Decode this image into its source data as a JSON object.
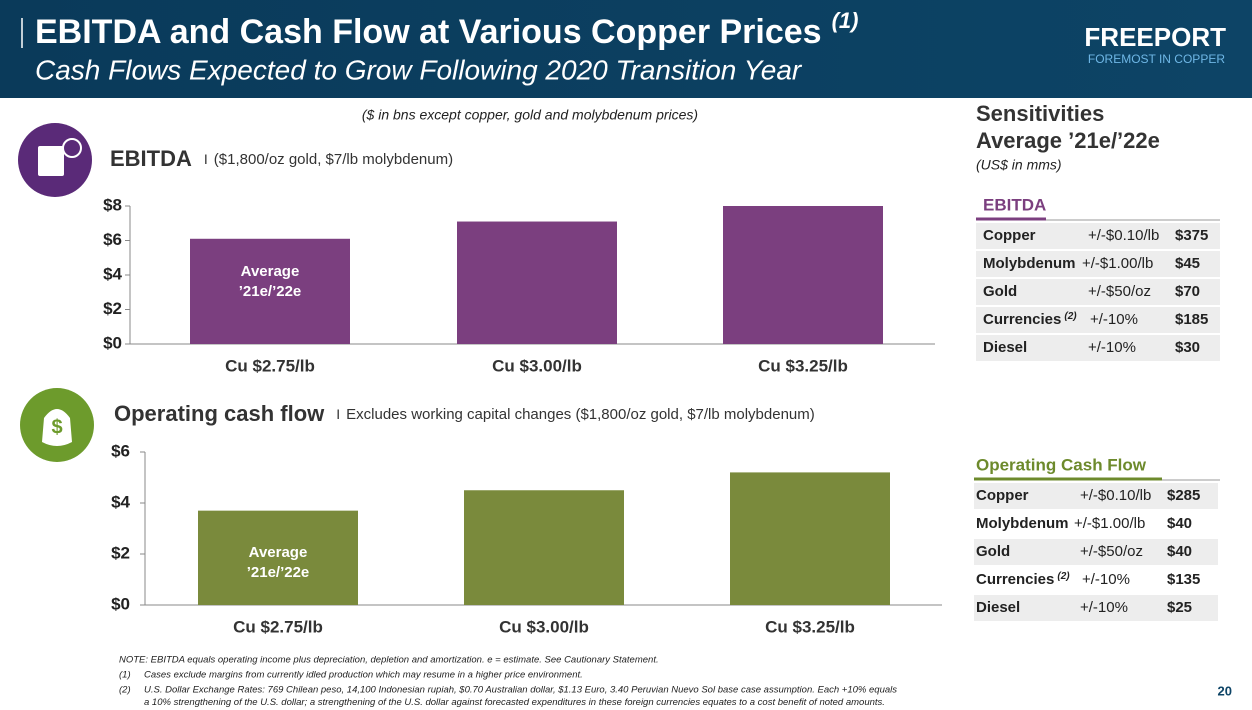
{
  "header": {
    "title": "EBITDA and Cash Flow at Various Copper Prices",
    "title_ref": "(1)",
    "subtitle": "Cash Flows Expected to Grow Following 2020 Transition Year",
    "logo": "FREEPORT",
    "tagline": "FOREMOST IN COPPER"
  },
  "units_note": "($ in bns except copper, gold and molybdenum prices)",
  "chart_data": [
    {
      "type": "bar",
      "title": "EBITDA",
      "subtitle": "($1,800/oz gold, $7/lb molybdenum)",
      "categories": [
        "Cu $2.75/lb",
        "Cu $3.00/lb",
        "Cu $3.25/lb"
      ],
      "values": [
        6.1,
        7.1,
        8.0
      ],
      "color": "#7b3f7f",
      "annotation": [
        "Average",
        "’21e/’22e"
      ],
      "ylim": [
        0,
        8
      ],
      "yticks": [
        {
          "value": 0,
          "label": "$0"
        },
        {
          "value": 2,
          "label": "$2"
        },
        {
          "value": 4,
          "label": "$4"
        },
        {
          "value": 6,
          "label": "$6"
        },
        {
          "value": 8,
          "label": "$8"
        }
      ]
    },
    {
      "type": "bar",
      "title": "Operating cash flow",
      "subtitle": "Excludes working capital changes ($1,800/oz gold, $7/lb molybdenum)",
      "categories": [
        "Cu $2.75/lb",
        "Cu $3.00/lb",
        "Cu $3.25/lb"
      ],
      "values": [
        3.7,
        4.5,
        5.2
      ],
      "color": "#7a8a3c",
      "annotation": [
        "Average",
        "’21e/’22e"
      ],
      "ylim": [
        0,
        6
      ],
      "yticks": [
        {
          "value": 0,
          "label": "$0"
        },
        {
          "value": 2,
          "label": "$2"
        },
        {
          "value": 4,
          "label": "$4"
        },
        {
          "value": 6,
          "label": "$6"
        }
      ]
    }
  ],
  "sensitivities": {
    "title": [
      "Sensitivities",
      "Average ’21e/’22e"
    ],
    "units": "(US$ in mms)",
    "tables": [
      {
        "heading": "EBITDA",
        "rows": [
          {
            "item": "Copper",
            "change": "+/-$0.10/lb",
            "impact": "$375"
          },
          {
            "item": "Molybdenum",
            "change": "+/-$1.00/lb",
            "impact": "$45"
          },
          {
            "item": "Gold",
            "change": "+/-$50/oz",
            "impact": "$70"
          },
          {
            "item": "Currencies",
            "ref": "(2)",
            "change": "+/-10%",
            "impact": "$185"
          },
          {
            "item": "Diesel",
            "change": "+/-10%",
            "impact": "$30"
          }
        ]
      },
      {
        "heading": "Operating Cash Flow",
        "rows": [
          {
            "item": "Copper",
            "change": "+/-$0.10/lb",
            "impact": "$285"
          },
          {
            "item": "Molybdenum",
            "change": "+/-$1.00/lb",
            "impact": "$40"
          },
          {
            "item": "Gold",
            "change": "+/-$50/oz",
            "impact": "$40"
          },
          {
            "item": "Currencies",
            "ref": "(2)",
            "change": "+/-10%",
            "impact": "$135"
          },
          {
            "item": "Diesel",
            "change": "+/-10%",
            "impact": "$25"
          }
        ]
      }
    ]
  },
  "footnotes": {
    "note": "NOTE: EBITDA equals operating income plus depreciation, depletion and amortization. e = estimate. See Cautionary Statement.",
    "items": [
      {
        "marker": "(1)",
        "lines": [
          "Cases exclude margins from currently idled production which may resume in a higher price environment."
        ]
      },
      {
        "marker": "(2)",
        "lines": [
          "U.S. Dollar Exchange Rates: 769 Chilean peso, 14,100 Indonesian rupiah, $0.70 Australian dollar, $1.13 Euro, 3.40 Peruvian Nuevo Sol base case assumption. Each +10% equals",
          "a 10% strengthening of the U.S. dollar; a strengthening of the U.S. dollar against forecasted expenditures in these foreign currencies equates to a cost benefit of noted amounts."
        ]
      }
    ]
  },
  "page_number": "20"
}
